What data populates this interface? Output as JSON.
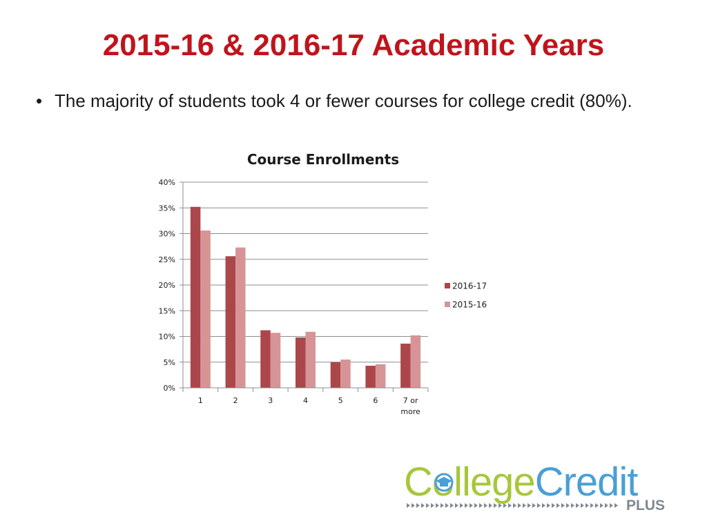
{
  "slide": {
    "title": "2015-16 & 2016-17 Academic Years",
    "bullets": [
      "The majority of students took 4 or fewer courses for college credit (80%)."
    ],
    "bullet_glyph": "•"
  },
  "chart_data": {
    "type": "bar",
    "title": "Course Enrollments",
    "categories": [
      "1",
      "2",
      "3",
      "4",
      "5",
      "6",
      "7 or more"
    ],
    "category_lines": [
      [
        "1"
      ],
      [
        "2"
      ],
      [
        "3"
      ],
      [
        "4"
      ],
      [
        "5"
      ],
      [
        "6"
      ],
      [
        "7 or",
        "more"
      ]
    ],
    "series": [
      {
        "name": "2016-17",
        "color": "#ab464b",
        "values": [
          35.2,
          25.6,
          11.2,
          9.8,
          5.0,
          4.3,
          8.6
        ]
      },
      {
        "name": "2015-16",
        "color": "#d79496",
        "values": [
          30.6,
          27.3,
          10.7,
          10.9,
          5.5,
          4.6,
          10.2
        ]
      }
    ],
    "y_unit": "%",
    "ylim": [
      0,
      40
    ],
    "yticks": [
      0,
      5,
      10,
      15,
      20,
      25,
      30,
      35,
      40
    ],
    "ytick_labels": [
      "0%",
      "5%",
      "10%",
      "15%",
      "20%",
      "25%",
      "30%",
      "35%",
      "40%"
    ],
    "xlabel": "",
    "ylabel": "",
    "grid": true,
    "legend_position": "right"
  },
  "logo": {
    "text_college": "College",
    "text_credit": "Credit",
    "text_plus": "PLUS",
    "color_green": "#a6c73a",
    "color_blue": "#4a9fd6",
    "color_gray": "#808890",
    "icon": "graduation-cap-icon"
  }
}
